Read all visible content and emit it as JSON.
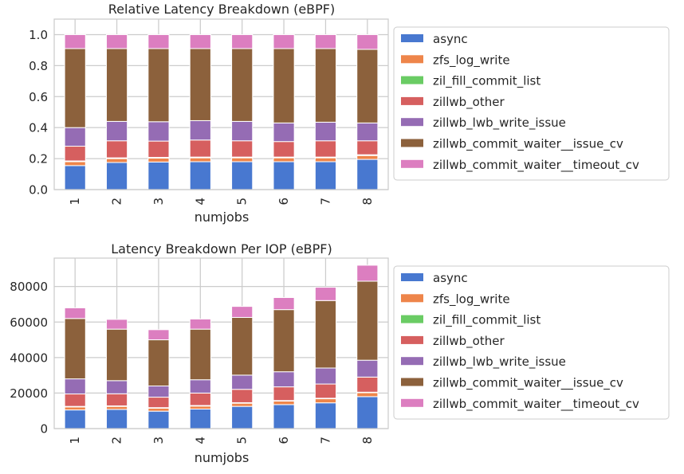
{
  "chart_data": [
    {
      "type": "bar",
      "stacked": true,
      "title": "Relative Latency Breakdown (eBPF)",
      "xlabel": "numjobs",
      "ylabel": "",
      "categories": [
        "1",
        "2",
        "3",
        "4",
        "5",
        "6",
        "7",
        "8"
      ],
      "ylim": [
        0,
        1.1
      ],
      "yticks": [
        0.0,
        0.2,
        0.4,
        0.6,
        0.8,
        1.0
      ],
      "ytick_labels": [
        "0.0",
        "0.2",
        "0.4",
        "0.6",
        "0.8",
        "1.0"
      ],
      "grid": true,
      "legend_position": "right",
      "series": [
        {
          "name": "async",
          "color": "#4878d0",
          "values": [
            0.155,
            0.175,
            0.178,
            0.18,
            0.18,
            0.18,
            0.18,
            0.195
          ]
        },
        {
          "name": "zfs_log_write",
          "color": "#ee854a",
          "values": [
            0.025,
            0.025,
            0.025,
            0.025,
            0.025,
            0.025,
            0.025,
            0.025
          ]
        },
        {
          "name": "zil_fill_commit_list",
          "color": "#6acc64",
          "values": [
            0.005,
            0.005,
            0.005,
            0.005,
            0.005,
            0.005,
            0.005,
            0.005
          ]
        },
        {
          "name": "zillwb_other",
          "color": "#d65f5f",
          "values": [
            0.095,
            0.11,
            0.105,
            0.11,
            0.105,
            0.1,
            0.105,
            0.09
          ]
        },
        {
          "name": "zillwb_lwb_write_issue",
          "color": "#956cb4",
          "values": [
            0.12,
            0.125,
            0.125,
            0.125,
            0.125,
            0.12,
            0.12,
            0.115
          ]
        },
        {
          "name": "zillwb_commit_waiter__issue_cv",
          "color": "#8c613c",
          "values": [
            0.51,
            0.47,
            0.472,
            0.465,
            0.47,
            0.48,
            0.475,
            0.475
          ]
        },
        {
          "name": "zillwb_commit_waiter__timeout_cv",
          "color": "#dc7ec0",
          "values": [
            0.09,
            0.09,
            0.09,
            0.09,
            0.09,
            0.09,
            0.09,
            0.095
          ]
        }
      ]
    },
    {
      "type": "bar",
      "stacked": true,
      "title": "Latency Breakdown Per IOP (eBPF)",
      "xlabel": "numjobs",
      "ylabel": "",
      "categories": [
        "1",
        "2",
        "3",
        "4",
        "5",
        "6",
        "7",
        "8"
      ],
      "ylim": [
        0,
        96000
      ],
      "yticks": [
        0,
        20000,
        40000,
        60000,
        80000
      ],
      "ytick_labels": [
        "0",
        "20000",
        "40000",
        "60000",
        "80000"
      ],
      "grid": true,
      "legend_position": "right",
      "series": [
        {
          "name": "async",
          "color": "#4878d0",
          "values": [
            10500,
            10800,
            9800,
            11000,
            12500,
            13500,
            14500,
            18000
          ]
        },
        {
          "name": "zfs_log_write",
          "color": "#ee854a",
          "values": [
            1700,
            1700,
            1700,
            1700,
            1800,
            2000,
            2300,
            2200
          ]
        },
        {
          "name": "zil_fill_commit_list",
          "color": "#6acc64",
          "values": [
            300,
            300,
            300,
            300,
            300,
            300,
            300,
            300
          ]
        },
        {
          "name": "zillwb_other",
          "color": "#d65f5f",
          "values": [
            7000,
            6800,
            5900,
            7000,
            7500,
            7700,
            8000,
            8500
          ]
        },
        {
          "name": "zillwb_lwb_write_issue",
          "color": "#956cb4",
          "values": [
            8500,
            7400,
            6300,
            7500,
            8000,
            8500,
            9000,
            9500
          ]
        },
        {
          "name": "zillwb_commit_waiter__issue_cv",
          "color": "#8c613c",
          "values": [
            34000,
            29000,
            26000,
            28500,
            32500,
            35000,
            38000,
            44500
          ]
        },
        {
          "name": "zillwb_commit_waiter__timeout_cv",
          "color": "#dc7ec0",
          "values": [
            6000,
            5500,
            5700,
            5700,
            6200,
            6800,
            7500,
            9000
          ]
        }
      ]
    }
  ]
}
